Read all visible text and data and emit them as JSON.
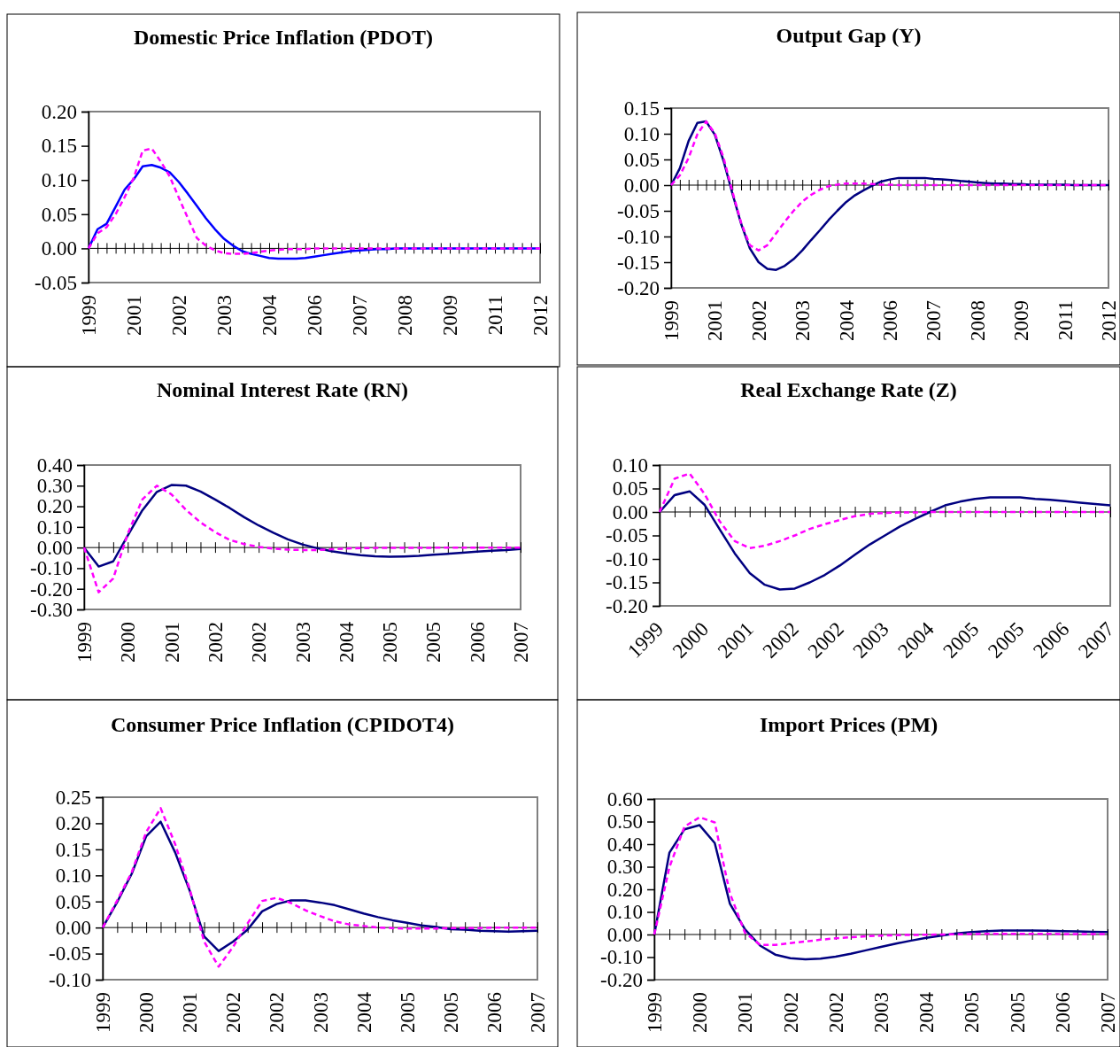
{
  "chart_data": [
    {
      "type": "line",
      "title": "Domestic Price Inflation (PDOT)",
      "categories": [
        "1999",
        null,
        null,
        null,
        null,
        "2001",
        null,
        null,
        null,
        null,
        "2002",
        null,
        null,
        null,
        null,
        "2003",
        null,
        null,
        null,
        null,
        "2004",
        null,
        null,
        null,
        null,
        "2006",
        null,
        null,
        null,
        null,
        "2007",
        null,
        null,
        null,
        null,
        "2008",
        null,
        null,
        null,
        null,
        "2009",
        null,
        null,
        null,
        null,
        "2011",
        null,
        null,
        null,
        null,
        "2012"
      ],
      "ref_lines": [
        {
          "axis": "y",
          "value": 0,
          "color": "#000000"
        }
      ],
      "ylim": [
        -0.05,
        0.2
      ],
      "yticks": [
        {
          "value": -0.05,
          "label": "-0.05"
        },
        {
          "value": 0,
          "label": "0.00"
        },
        {
          "value": 0.05,
          "label": "0.05"
        },
        {
          "value": 0.1,
          "label": "0.10"
        },
        {
          "value": 0.15,
          "label": "0.15"
        },
        {
          "value": 0.2,
          "label": "0.20"
        }
      ],
      "series": [
        {
          "color": "#0000ff",
          "line_style": "solid",
          "values": [
            0,
            0.028,
            0.036,
            0.061,
            0.086,
            0.101,
            0.12,
            0.122,
            0.118,
            0.111,
            0.097,
            0.08,
            0.062,
            0.044,
            0.028,
            0.014,
            0.004,
            -0.004,
            -0.008,
            -0.011,
            -0.014,
            -0.015,
            -0.015,
            -0.015,
            -0.014,
            -0.012,
            -0.01,
            -0.008,
            -0.006,
            -0.004,
            -0.003,
            -0.002,
            -0.001,
            -0.001,
            0,
            0,
            0,
            0,
            0,
            0,
            0,
            0,
            0,
            0,
            0,
            0,
            0,
            0,
            0,
            0,
            0
          ]
        },
        {
          "color": "#ff00ff",
          "line_style": "dashed",
          "values": [
            0,
            0.022,
            0.031,
            0.05,
            0.075,
            0.103,
            0.143,
            0.146,
            0.127,
            0.105,
            0.074,
            0.044,
            0.015,
            0.004,
            -0.003,
            -0.007,
            -0.008,
            -0.008,
            -0.007,
            -0.005,
            -0.003,
            -0.002,
            -0.001,
            -0.001,
            -0.001,
            0,
            0,
            0,
            0,
            0,
            0,
            0,
            0,
            0,
            0,
            0,
            0,
            0,
            0,
            0,
            0,
            0,
            0,
            0,
            0,
            0,
            0,
            0,
            0,
            0,
            0
          ]
        }
      ]
    },
    {
      "type": "line",
      "title": "Output Gap (Y)",
      "categories": [
        "1999",
        null,
        null,
        null,
        null,
        "2001",
        null,
        null,
        null,
        null,
        "2002",
        null,
        null,
        null,
        null,
        "2003",
        null,
        null,
        null,
        null,
        "2004",
        null,
        null,
        null,
        null,
        "2006",
        null,
        null,
        null,
        null,
        "2007",
        null,
        null,
        null,
        null,
        "2008",
        null,
        null,
        null,
        null,
        "2009",
        null,
        null,
        null,
        null,
        "2011",
        null,
        null,
        null,
        null,
        "2012"
      ],
      "ref_lines": [
        {
          "axis": "y",
          "value": 0,
          "color": "#000000"
        }
      ],
      "ylim": [
        -0.2,
        0.15
      ],
      "yticks": [
        {
          "value": -0.2,
          "label": "-0.20"
        },
        {
          "value": -0.15,
          "label": "-0.15"
        },
        {
          "value": -0.1,
          "label": "-0.10"
        },
        {
          "value": -0.05,
          "label": "-0.05"
        },
        {
          "value": 0,
          "label": "0.00"
        },
        {
          "value": 0.05,
          "label": "0.05"
        },
        {
          "value": 0.1,
          "label": "0.10"
        },
        {
          "value": 0.15,
          "label": "0.15"
        }
      ],
      "series": [
        {
          "color": "#000080",
          "line_style": "solid",
          "values": [
            0,
            0.033,
            0.086,
            0.121,
            0.124,
            0.098,
            0.047,
            -0.016,
            -0.075,
            -0.123,
            -0.15,
            -0.163,
            -0.165,
            -0.157,
            -0.144,
            -0.127,
            -0.107,
            -0.088,
            -0.068,
            -0.05,
            -0.033,
            -0.02,
            -0.01,
            -0.001,
            0.007,
            0.011,
            0.014,
            0.014,
            0.014,
            0.014,
            0.012,
            0.011,
            0.01,
            0.008,
            0.007,
            0.005,
            0.004,
            0.003,
            0.003,
            0.002,
            0.002,
            0.001,
            0.001,
            0.001,
            0.001,
            0.001,
            0,
            0,
            0,
            0,
            0
          ]
        },
        {
          "color": "#ff00ff",
          "line_style": "dashed",
          "values": [
            0,
            0.019,
            0.053,
            0.099,
            0.124,
            0.101,
            0.053,
            -0.012,
            -0.073,
            -0.117,
            -0.127,
            -0.117,
            -0.094,
            -0.071,
            -0.05,
            -0.032,
            -0.019,
            -0.009,
            -0.002,
            0.001,
            0.003,
            0.003,
            0.003,
            0.002,
            0.001,
            0.001,
            0,
            0,
            0,
            0,
            0,
            0,
            0,
            0,
            0,
            0,
            0,
            0,
            0,
            0,
            0,
            0,
            0,
            0,
            0,
            0,
            0,
            0,
            0,
            0,
            0
          ]
        }
      ]
    },
    {
      "type": "line",
      "title": "Nominal Interest Rate (RN)",
      "categories": [
        "1999",
        null,
        null,
        "2000",
        null,
        null,
        "2001",
        null,
        null,
        "2002",
        null,
        null,
        "2002",
        null,
        null,
        "2003",
        null,
        null,
        "2004",
        null,
        null,
        "2005",
        null,
        null,
        "2005",
        null,
        null,
        "2006",
        null,
        null,
        "2007"
      ],
      "ref_lines": [
        {
          "axis": "y",
          "value": 0,
          "color": "#000000"
        }
      ],
      "ylim": [
        -0.3,
        0.4
      ],
      "yticks": [
        {
          "value": -0.3,
          "label": "-0.30"
        },
        {
          "value": -0.2,
          "label": "-0.20"
        },
        {
          "value": -0.1,
          "label": "-0.10"
        },
        {
          "value": 0,
          "label": "0.00"
        },
        {
          "value": 0.1,
          "label": "0.10"
        },
        {
          "value": 0.2,
          "label": "0.20"
        },
        {
          "value": 0.3,
          "label": "0.30"
        },
        {
          "value": 0.4,
          "label": "0.40"
        }
      ],
      "series": [
        {
          "color": "#000080",
          "line_style": "solid",
          "values": [
            0,
            -0.092,
            -0.067,
            0.058,
            0.18,
            0.27,
            0.303,
            0.3,
            0.272,
            0.233,
            0.192,
            0.147,
            0.107,
            0.072,
            0.04,
            0.015,
            -0.003,
            -0.018,
            -0.028,
            -0.037,
            -0.042,
            -0.045,
            -0.043,
            -0.04,
            -0.035,
            -0.03,
            -0.025,
            -0.02,
            -0.015,
            -0.012,
            -0.007
          ]
        },
        {
          "color": "#ff00ff",
          "line_style": "dashed",
          "values": [
            0,
            -0.217,
            -0.15,
            0.067,
            0.233,
            0.3,
            0.258,
            0.183,
            0.122,
            0.075,
            0.037,
            0.017,
            0.003,
            -0.005,
            -0.01,
            -0.012,
            -0.012,
            -0.008,
            -0.005,
            -0.003,
            -0.002,
            -0.002,
            -0.001,
            -0.001,
            -0.001,
            0,
            0,
            0,
            0,
            0,
            0
          ]
        }
      ]
    },
    {
      "type": "line",
      "title": "Real Exchange Rate (Z)",
      "categories": [
        "1999",
        null,
        null,
        "2000",
        null,
        null,
        "2001",
        null,
        null,
        "2002",
        null,
        null,
        "2002",
        null,
        null,
        "2003",
        null,
        null,
        "2004",
        null,
        null,
        "2005",
        null,
        null,
        "2005",
        null,
        null,
        "2006",
        null,
        null,
        "2007"
      ],
      "ref_lines": [
        {
          "axis": "y",
          "value": 0,
          "color": "#000000"
        }
      ],
      "ylim": [
        -0.2,
        0.1
      ],
      "yticks": [
        {
          "value": -0.2,
          "label": "-0.20"
        },
        {
          "value": -0.15,
          "label": "-0.15"
        },
        {
          "value": -0.1,
          "label": "-0.10"
        },
        {
          "value": -0.05,
          "label": "-0.05"
        },
        {
          "value": 0,
          "label": "0.00"
        },
        {
          "value": 0.05,
          "label": "0.05"
        },
        {
          "value": 0.1,
          "label": "0.10"
        }
      ],
      "series": [
        {
          "color": "#000080",
          "line_style": "solid",
          "values": [
            0,
            0.036,
            0.044,
            0.015,
            -0.037,
            -0.088,
            -0.13,
            -0.155,
            -0.165,
            -0.163,
            -0.15,
            -0.134,
            -0.114,
            -0.091,
            -0.069,
            -0.05,
            -0.031,
            -0.015,
            0.0,
            0.014,
            0.022,
            0.028,
            0.031,
            0.031,
            0.031,
            0.028,
            0.026,
            0.023,
            0.02,
            0.017,
            0.014
          ]
        },
        {
          "color": "#ff00ff",
          "line_style": "dashed",
          "values": [
            0,
            0.071,
            0.082,
            0.038,
            -0.02,
            -0.062,
            -0.077,
            -0.072,
            -0.062,
            -0.05,
            -0.036,
            -0.026,
            -0.017,
            -0.009,
            -0.004,
            -0.002,
            -0.001,
            -0.001,
            0,
            0,
            0,
            0,
            0,
            0,
            0,
            0,
            0,
            0,
            0,
            0,
            0
          ]
        }
      ]
    },
    {
      "type": "line",
      "title": "Consumer Price Inflation (CPIDOT4)",
      "categories": [
        "1999",
        null,
        null,
        "2000",
        null,
        null,
        "2001",
        null,
        null,
        "2002",
        null,
        null,
        "2002",
        null,
        null,
        "2003",
        null,
        null,
        "2004",
        null,
        null,
        "2005",
        null,
        null,
        "2005",
        null,
        null,
        "2006",
        null,
        null,
        "2007"
      ],
      "ref_lines": [
        {
          "axis": "y",
          "value": 0,
          "color": "#000000"
        }
      ],
      "ylim": [
        -0.1,
        0.25
      ],
      "yticks": [
        {
          "value": -0.1,
          "label": "-0.10"
        },
        {
          "value": -0.05,
          "label": "-0.05"
        },
        {
          "value": 0,
          "label": "0.00"
        },
        {
          "value": 0.05,
          "label": "0.05"
        },
        {
          "value": 0.1,
          "label": "0.10"
        },
        {
          "value": 0.15,
          "label": "0.15"
        },
        {
          "value": 0.2,
          "label": "0.20"
        },
        {
          "value": 0.25,
          "label": "0.25"
        }
      ],
      "series": [
        {
          "color": "#000080",
          "line_style": "solid",
          "values": [
            0,
            0.049,
            0.103,
            0.175,
            0.203,
            0.144,
            0.071,
            -0.017,
            -0.045,
            -0.027,
            -0.004,
            0.031,
            0.045,
            0.052,
            0.052,
            0.048,
            0.043,
            0.035,
            0.027,
            0.02,
            0.014,
            0.009,
            0.004,
            0.001,
            -0.003,
            -0.004,
            -0.006,
            -0.007,
            -0.008,
            -0.007,
            -0.006
          ]
        },
        {
          "color": "#ff00ff",
          "line_style": "dashed",
          "values": [
            0,
            0.052,
            0.106,
            0.183,
            0.229,
            0.16,
            0.074,
            -0.027,
            -0.075,
            -0.037,
            0.008,
            0.051,
            0.057,
            0.047,
            0.033,
            0.022,
            0.012,
            0.006,
            0.003,
            0.0,
            -0.001,
            -0.002,
            -0.002,
            -0.002,
            -0.001,
            -0.001,
            -0.001,
            0,
            0,
            0,
            0
          ]
        }
      ]
    },
    {
      "type": "line",
      "title": "Import Prices (PM)",
      "categories": [
        "1999",
        null,
        null,
        "2000",
        null,
        null,
        "2001",
        null,
        null,
        "2002",
        null,
        null,
        "2002",
        null,
        null,
        "2003",
        null,
        null,
        "2004",
        null,
        null,
        "2005",
        null,
        null,
        "2005",
        null,
        null,
        "2006",
        null,
        null,
        "2007"
      ],
      "ref_lines": [
        {
          "axis": "y",
          "value": 0,
          "color": "#000000"
        }
      ],
      "ylim": [
        -0.2,
        0.6
      ],
      "yticks": [
        {
          "value": -0.2,
          "label": "-0.20"
        },
        {
          "value": -0.1,
          "label": "-0.10"
        },
        {
          "value": 0,
          "label": "0.00"
        },
        {
          "value": 0.1,
          "label": "0.10"
        },
        {
          "value": 0.2,
          "label": "0.20"
        },
        {
          "value": 0.3,
          "label": "0.30"
        },
        {
          "value": 0.4,
          "label": "0.40"
        },
        {
          "value": 0.5,
          "label": "0.50"
        },
        {
          "value": 0.6,
          "label": "0.60"
        }
      ],
      "series": [
        {
          "color": "#000080",
          "line_style": "solid",
          "values": [
            0,
            0.362,
            0.466,
            0.484,
            0.405,
            0.137,
            0.023,
            -0.049,
            -0.089,
            -0.105,
            -0.11,
            -0.107,
            -0.098,
            -0.085,
            -0.07,
            -0.055,
            -0.04,
            -0.027,
            -0.015,
            -0.005,
            0.005,
            0.011,
            0.015,
            0.018,
            0.018,
            0.018,
            0.017,
            0.015,
            0.014,
            0.012,
            0.011
          ]
        },
        {
          "color": "#ff00ff",
          "line_style": "dashed",
          "values": [
            0,
            0.298,
            0.478,
            0.519,
            0.496,
            0.183,
            0.008,
            -0.046,
            -0.046,
            -0.038,
            -0.031,
            -0.023,
            -0.017,
            -0.012,
            -0.008,
            -0.005,
            -0.003,
            -0.002,
            -0.001,
            0,
            0.001,
            0.002,
            0.003,
            0.003,
            0.003,
            0.003,
            0.003,
            0.002,
            0.002,
            0.002,
            0.002
          ]
        }
      ]
    }
  ]
}
